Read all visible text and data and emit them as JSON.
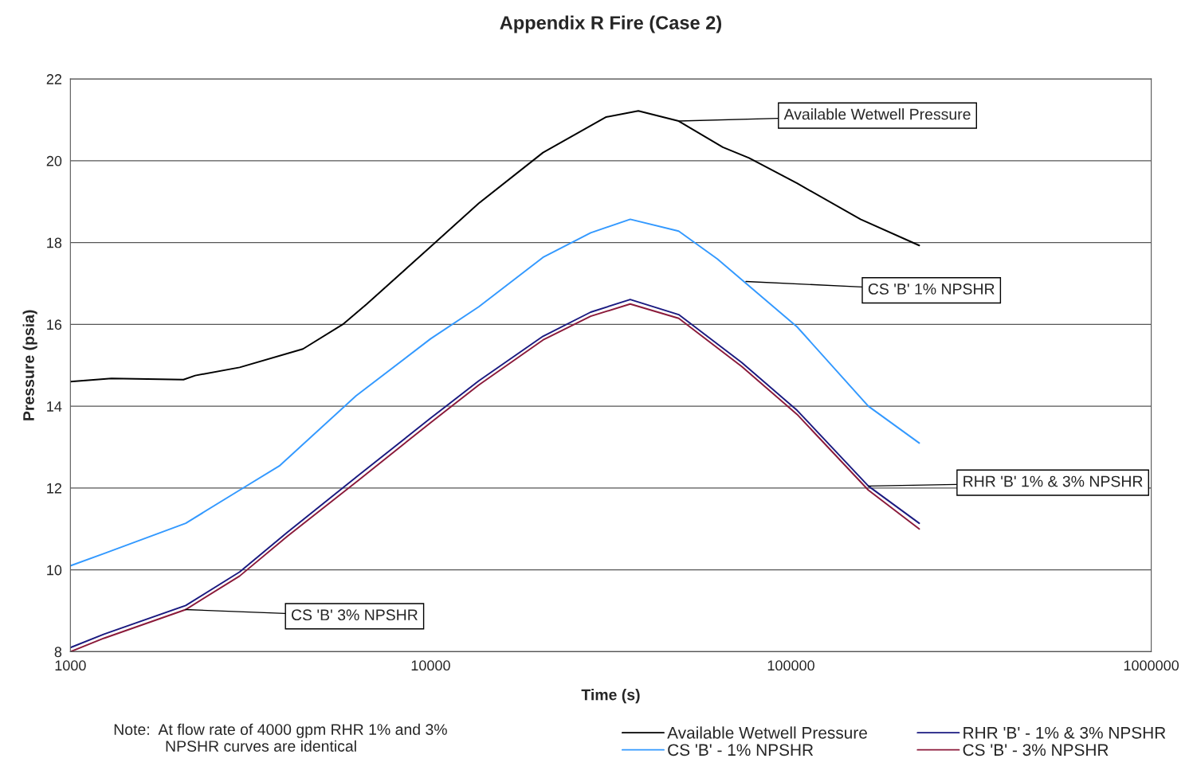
{
  "chart_data": {
    "type": "line",
    "title": "Appendix R Fire (Case 2)",
    "xlabel": "Time (s)",
    "ylabel": "Pressure (psia)",
    "log": "x",
    "xlim": [
      1000,
      1000000
    ],
    "xticks": [
      1000,
      10000,
      100000,
      1000000
    ],
    "ylim": [
      8,
      22
    ],
    "yticks": [
      8,
      10,
      12,
      14,
      16,
      18,
      20,
      22
    ],
    "grid": "y",
    "legend": "bottom right",
    "marker": "none",
    "line_style": "solid",
    "series": [
      {
        "name": "Available Wetwell Pressure",
        "color": "#000000",
        "x": [
          1000,
          1300,
          2060,
          2220,
          2950,
          4420,
          5700,
          6650,
          10000,
          13600,
          20500,
          30700,
          37700,
          48800,
          64700,
          76500,
          104000,
          156000,
          227000
        ],
        "values": [
          14.6,
          14.68,
          14.65,
          14.75,
          14.95,
          15.4,
          16.0,
          16.5,
          17.9,
          18.96,
          20.2,
          21.07,
          21.22,
          20.97,
          20.33,
          20.07,
          19.45,
          18.57,
          17.93
        ]
      },
      {
        "name": "CS 'B' - 1% NPSHR",
        "color": "#3399ff",
        "x": [
          1000,
          1240,
          2090,
          2950,
          3800,
          6200,
          10000,
          13600,
          20500,
          27800,
          35800,
          48800,
          62500,
          104000,
          164000,
          227000
        ],
        "values": [
          10.1,
          10.4,
          11.14,
          11.95,
          12.54,
          14.25,
          15.65,
          16.43,
          17.64,
          18.24,
          18.57,
          18.28,
          17.6,
          15.94,
          14.0,
          13.1
        ]
      },
      {
        "name": "RHR 'B' - 1% & 3% NPSHR",
        "color": "#1a1a80",
        "x": [
          1000,
          1240,
          2090,
          2950,
          4000,
          6320,
          10000,
          13600,
          20500,
          27800,
          35800,
          48800,
          73000,
          104000,
          164000,
          227000
        ],
        "values": [
          8.1,
          8.43,
          9.13,
          9.95,
          10.92,
          12.32,
          13.71,
          14.62,
          15.71,
          16.3,
          16.61,
          16.24,
          15.07,
          13.9,
          12.05,
          11.14
        ]
      },
      {
        "name": "CS 'B' - 3% NPSHR",
        "color": "#8b1a3a",
        "x": [
          1000,
          1240,
          2090,
          2950,
          4000,
          6320,
          10000,
          13600,
          20500,
          27800,
          35800,
          48800,
          73000,
          104000,
          164000,
          227000
        ],
        "values": [
          8.0,
          8.33,
          9.03,
          9.85,
          10.82,
          12.2,
          13.6,
          14.52,
          15.62,
          16.2,
          16.5,
          16.15,
          14.97,
          13.8,
          11.95,
          11.0
        ]
      }
    ],
    "annotations": [
      {
        "text": "Available Wetwell Pressure",
        "x": 48800,
        "y": 20.97
      },
      {
        "text": "CS 'B' 1% NPSHR",
        "x": 75000,
        "y": 17.05
      },
      {
        "text": "RHR 'B' 1% & 3% NPSHR",
        "x": 164000,
        "y": 12.05
      },
      {
        "text": "CS 'B' 3% NPSHR",
        "x": 2090,
        "y": 9.03
      },
      "Note:  At flow rate of 4000 gpm RHR 1% and 3%\n            NPSHR curves are identical"
    ]
  }
}
